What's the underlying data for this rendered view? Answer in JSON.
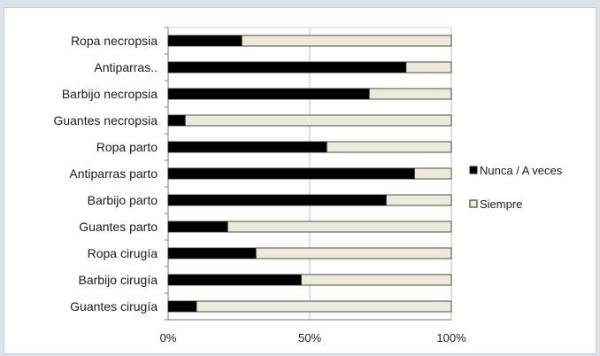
{
  "chart_data": {
    "type": "bar",
    "orientation": "horizontal",
    "stacked": true,
    "percent_stacked": true,
    "categories": [
      "Ropa necropsia",
      "Antiparras..",
      "Barbijo necropsia",
      "Guantes necropsia",
      "Ropa parto",
      "Antiparras parto",
      "Barbijo parto",
      "Guantes parto",
      "Ropa cirugía",
      "Barbijo cirugía",
      "Guantes cirugía"
    ],
    "series": [
      {
        "name": "Nunca / A veces",
        "color": "#000000",
        "values": [
          26,
          84,
          71,
          6,
          56,
          87,
          77,
          21,
          31,
          47,
          10
        ]
      },
      {
        "name": "Siempre",
        "color": "#ecebd9",
        "values": [
          74,
          16,
          29,
          94,
          44,
          13,
          23,
          79,
          69,
          53,
          90
        ]
      }
    ],
    "xlim": [
      0,
      100
    ],
    "xticks": [
      "0%",
      "50%",
      "100%"
    ],
    "grid": "vertical",
    "legend": "right"
  }
}
